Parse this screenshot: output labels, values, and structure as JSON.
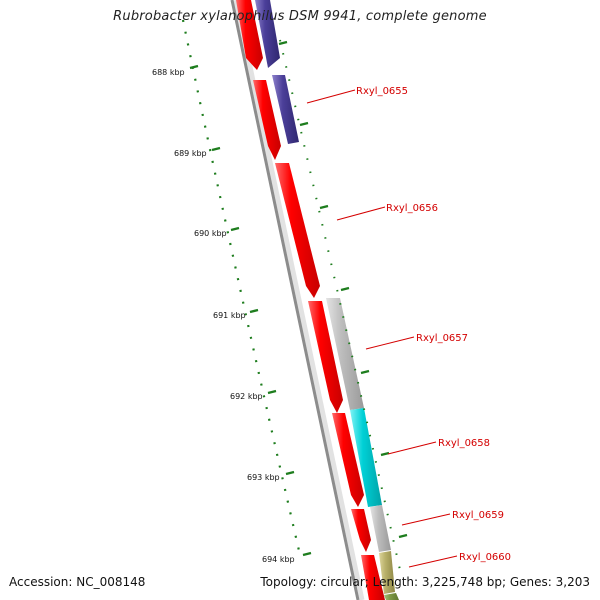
{
  "title": "Rubrobacter xylanophilus DSM 9941, complete genome",
  "accession": "Accession: NC_008148",
  "topology": "Topology: circular; Length: 3,225,748 bp; Genes: 3,203",
  "colors": {
    "backbone": "#8c8c8c",
    "cds": "#ff0000",
    "gene_blue": "#4b3f99",
    "gene_gray": "#bdbdbd",
    "gene_cyan": "#00d0d6",
    "gene_olive": "#b8b06a",
    "tick": "#1e7d1e",
    "label": "#d40000"
  },
  "scale_labels": [
    "688 kbp",
    "689 kbp",
    "690 kbp",
    "691 kbp",
    "692 kbp",
    "693 kbp",
    "694 kbp"
  ],
  "genes": [
    {
      "label": "Rxyl_0655",
      "color": "gene_blue"
    },
    {
      "label": "Rxyl_0656",
      "color": "cds"
    },
    {
      "label": "Rxyl_0657",
      "color": "gene_gray"
    },
    {
      "label": "Rxyl_0658",
      "color": "gene_cyan"
    },
    {
      "label": "Rxyl_0659",
      "color": "gene_gray"
    },
    {
      "label": "Rxyl_0660",
      "color": "gene_olive"
    }
  ]
}
